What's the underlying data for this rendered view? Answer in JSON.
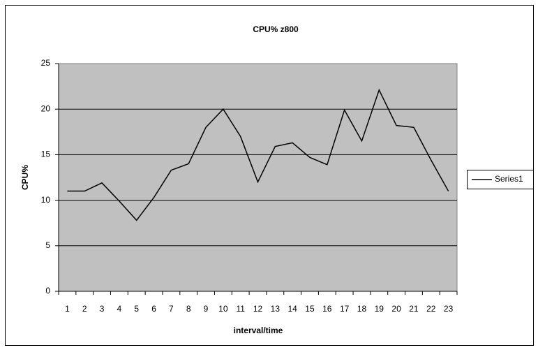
{
  "chart_data": {
    "type": "line",
    "title": "CPU% z800",
    "x_label": "interval/time",
    "y_label": "CPU%",
    "categories": [
      "1",
      "2",
      "3",
      "4",
      "5",
      "6",
      "7",
      "8",
      "9",
      "10",
      "11",
      "12",
      "13",
      "14",
      "15",
      "16",
      "17",
      "18",
      "19",
      "20",
      "21",
      "22",
      "23"
    ],
    "series": [
      {
        "name": "Series1",
        "color": "#000000",
        "values": [
          11,
          11,
          11.9,
          9.9,
          7.8,
          10.3,
          13.3,
          14,
          18,
          20,
          17,
          12,
          15.9,
          16.3,
          14.7,
          13.9,
          19.9,
          16.5,
          22.1,
          18.2,
          18,
          14.4,
          11
        ]
      }
    ],
    "ylim": [
      0,
      25
    ],
    "yticks": [
      0,
      5,
      10,
      15,
      20,
      25
    ],
    "grid": true,
    "legend": "right"
  }
}
